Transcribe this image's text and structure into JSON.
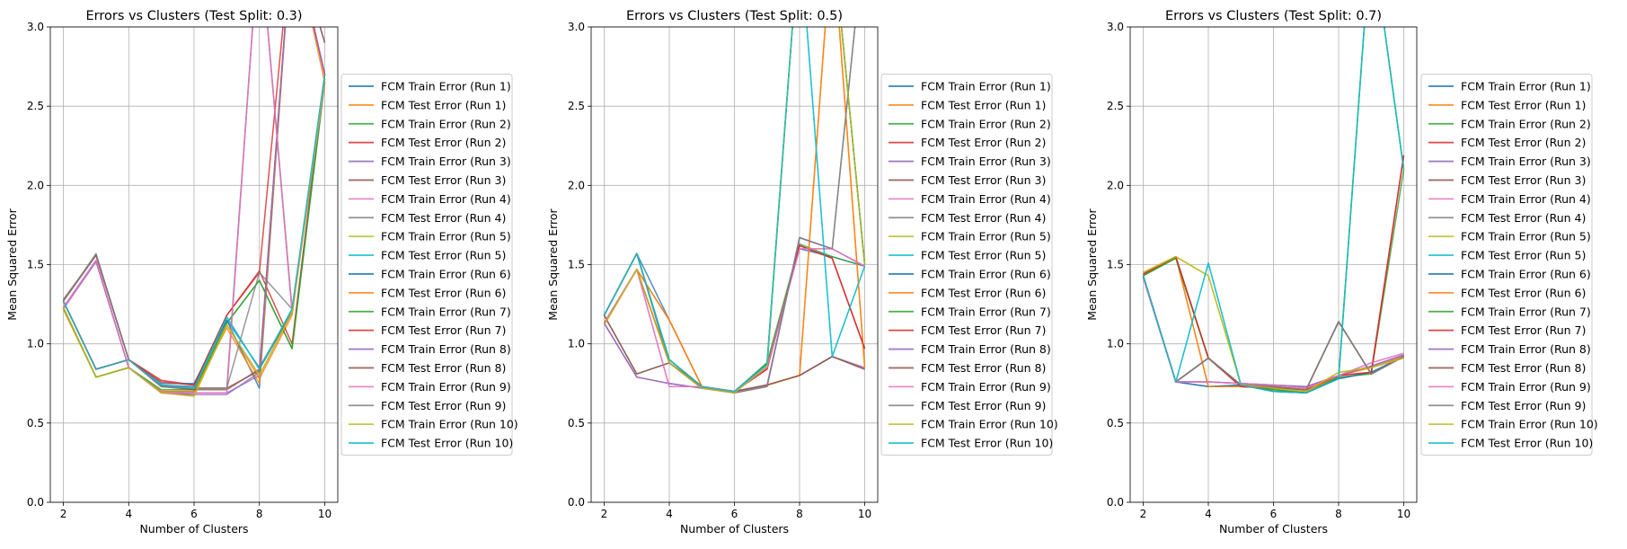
{
  "figure": {
    "series_colors": [
      "#1f77b4",
      "#ff7f0e",
      "#2ca02c",
      "#d62728",
      "#9467bd",
      "#8c564b",
      "#e377c2",
      "#7f7f7f",
      "#bcbd22",
      "#17becf",
      "#1f77b4",
      "#ff7f0e",
      "#2ca02c",
      "#d62728",
      "#9467bd",
      "#8c564b",
      "#e377c2",
      "#7f7f7f",
      "#bcbd22",
      "#17becf"
    ]
  },
  "chart_data": [
    {
      "type": "line",
      "title": "Errors vs Clusters (Test Split: 0.3)",
      "xlabel": "Number of Clusters",
      "ylabel": "Mean Squared Error",
      "xlim": [
        1.6,
        10.4
      ],
      "ylim": [
        0,
        3
      ],
      "xticks": [
        2,
        4,
        6,
        8,
        10
      ],
      "yticks": [
        0.0,
        0.5,
        1.0,
        1.5,
        2.0,
        2.5,
        3.0
      ],
      "grid": true,
      "legend": "outside-right",
      "x": [
        2,
        3,
        4,
        5,
        6,
        7,
        8,
        9,
        10
      ],
      "series": [
        {
          "name": "FCM Train Error (Run 1)",
          "values": [
            1.27,
            0.84,
            0.9,
            0.74,
            0.73,
            1.15,
            0.85,
            1.21,
            2.65
          ]
        },
        {
          "name": "FCM Test Error (Run 1)",
          "values": [
            1.22,
            0.79,
            0.85,
            0.69,
            0.68,
            1.12,
            0.78,
            1.18,
            2.7
          ]
        },
        {
          "name": "FCM Train Error (Run 2)",
          "values": [
            1.23,
            0.79,
            0.85,
            0.7,
            0.7,
            1.13,
            1.4,
            0.97,
            2.65
          ]
        },
        {
          "name": "FCM Test Error (Run 2)",
          "values": [
            1.27,
            0.84,
            0.9,
            0.77,
            0.74,
            1.18,
            1.46,
            1.0,
            2.7
          ]
        },
        {
          "name": "FCM Train Error (Run 3)",
          "values": [
            1.22,
            1.52,
            0.85,
            0.69,
            0.69,
            0.69,
            0.8,
            3.6,
            2.9
          ]
        },
        {
          "name": "FCM Test Error (Run 3)",
          "values": [
            1.28,
            1.56,
            0.9,
            0.73,
            0.72,
            0.72,
            0.83,
            3.6,
            2.9
          ]
        },
        {
          "name": "FCM Train Error (Run 4)",
          "values": [
            1.22,
            1.52,
            0.85,
            0.7,
            0.69,
            0.69,
            3.6,
            1.2,
            2.7
          ]
        },
        {
          "name": "FCM Test Error (Run 4)",
          "values": [
            1.27,
            1.56,
            0.9,
            0.74,
            0.72,
            0.72,
            3.6,
            1.22,
            2.65
          ]
        },
        {
          "name": "FCM Train Error (Run 5)",
          "values": [
            1.22,
            0.79,
            0.85,
            0.69,
            0.67,
            1.12,
            0.8,
            1.2,
            2.7
          ]
        },
        {
          "name": "FCM Test Error (Run 5)",
          "values": [
            1.27,
            0.84,
            0.9,
            0.74,
            0.71,
            1.17,
            0.84,
            1.22,
            2.65
          ]
        },
        {
          "name": "FCM Train Error (Run 6)",
          "values": [
            1.27,
            0.84,
            0.9,
            0.75,
            0.75,
            1.15,
            0.72,
            3.6,
            2.7
          ]
        },
        {
          "name": "FCM Test Error (Run 6)",
          "values": [
            1.22,
            0.79,
            0.85,
            0.7,
            0.7,
            1.1,
            0.75,
            3.6,
            2.65
          ]
        },
        {
          "name": "FCM Train Error (Run 7)",
          "values": [
            1.23,
            0.79,
            0.85,
            0.71,
            0.71,
            1.13,
            1.4,
            0.97,
            2.67
          ]
        },
        {
          "name": "FCM Test Error (Run 7)",
          "values": [
            1.27,
            0.84,
            0.9,
            0.76,
            0.74,
            1.18,
            1.45,
            3.6,
            2.7
          ]
        },
        {
          "name": "FCM Train Error (Run 8)",
          "values": [
            1.23,
            1.52,
            0.85,
            0.69,
            0.68,
            0.68,
            0.82,
            3.6,
            2.7
          ]
        },
        {
          "name": "FCM Test Error (Run 8)",
          "values": [
            1.27,
            1.56,
            0.9,
            0.73,
            0.71,
            0.71,
            0.84,
            1.2,
            2.65
          ]
        },
        {
          "name": "FCM Train Error (Run 9)",
          "values": [
            1.23,
            1.53,
            0.85,
            0.69,
            0.69,
            0.69,
            3.6,
            1.2,
            2.65
          ]
        },
        {
          "name": "FCM Test Error (Run 9)",
          "values": [
            1.27,
            1.57,
            0.9,
            0.73,
            0.72,
            0.72,
            1.45,
            1.22,
            2.7
          ]
        },
        {
          "name": "FCM Train Error (Run 10)",
          "values": [
            1.23,
            0.79,
            0.85,
            0.69,
            0.67,
            1.12,
            0.8,
            1.2,
            2.67
          ]
        },
        {
          "name": "FCM Test Error (Run 10)",
          "values": [
            1.27,
            0.84,
            0.9,
            0.74,
            0.72,
            1.17,
            0.84,
            1.22,
            2.7
          ]
        }
      ]
    },
    {
      "type": "line",
      "title": "Errors vs Clusters (Test Split: 0.5)",
      "xlabel": "Number of Clusters",
      "ylabel": "Mean Squared Error",
      "xlim": [
        1.6,
        10.4
      ],
      "ylim": [
        0,
        3
      ],
      "xticks": [
        2,
        4,
        6,
        8,
        10
      ],
      "yticks": [
        0.0,
        0.5,
        1.0,
        1.5,
        2.0,
        2.5,
        3.0
      ],
      "grid": true,
      "legend": "outside-right",
      "x": [
        2,
        3,
        4,
        5,
        6,
        7,
        8,
        9,
        10
      ],
      "series": [
        {
          "name": "FCM Train Error (Run 1)",
          "values": [
            1.18,
            1.57,
            1.15,
            0.73,
            0.7,
            0.87,
            1.6,
            1.55,
            1.49
          ]
        },
        {
          "name": "FCM Test Error (Run 1)",
          "values": [
            1.12,
            1.47,
            1.15,
            0.73,
            0.7,
            0.74,
            0.8,
            3.6,
            0.85
          ]
        },
        {
          "name": "FCM Train Error (Run 2)",
          "values": [
            1.18,
            1.57,
            0.9,
            0.73,
            0.69,
            0.88,
            1.63,
            1.55,
            1.49
          ]
        },
        {
          "name": "FCM Test Error (Run 2)",
          "values": [
            1.13,
            1.47,
            0.88,
            0.72,
            0.7,
            0.84,
            1.62,
            1.54,
            0.97
          ]
        },
        {
          "name": "FCM Train Error (Run 3)",
          "values": [
            1.13,
            0.79,
            0.75,
            0.72,
            0.7,
            0.74,
            0.8,
            0.92,
            0.85
          ]
        },
        {
          "name": "FCM Test Error (Run 3)",
          "values": [
            1.18,
            0.81,
            0.88,
            0.73,
            0.7,
            0.74,
            0.8,
            0.92,
            0.84
          ]
        },
        {
          "name": "FCM Train Error (Run 4)",
          "values": [
            1.13,
            1.47,
            0.73,
            0.73,
            0.7,
            0.85,
            1.6,
            1.6,
            1.49
          ]
        },
        {
          "name": "FCM Test Error (Run 4)",
          "values": [
            1.18,
            1.57,
            0.88,
            0.72,
            0.69,
            0.73,
            1.67,
            1.6,
            3.6
          ]
        },
        {
          "name": "FCM Train Error (Run 5)",
          "values": [
            1.12,
            1.47,
            0.88,
            0.72,
            0.69,
            0.86,
            3.6,
            3.6,
            1.5
          ]
        },
        {
          "name": "FCM Test Error (Run 5)",
          "values": [
            1.18,
            1.57,
            0.9,
            0.73,
            0.7,
            0.87,
            3.6,
            0.92,
            1.49
          ]
        },
        {
          "name": "FCM Train Error (Run 6)",
          "values": [
            1.18,
            1.57,
            0.9,
            0.73,
            0.7,
            0.88,
            3.6,
            3.6,
            1.5
          ]
        },
        {
          "name": "FCM Test Error (Run 6)",
          "values": [
            1.12,
            1.47,
            1.15,
            0.73,
            0.7,
            0.74,
            0.8,
            3.6,
            0.85
          ]
        },
        {
          "name": "FCM Train Error (Run 7)",
          "values": [
            1.18,
            1.57,
            0.9,
            0.73,
            0.69,
            0.88,
            3.6,
            3.6,
            1.5
          ]
        },
        {
          "name": "FCM Test Error (Run 7)",
          "values": [
            1.13,
            1.47,
            0.88,
            0.72,
            0.7,
            0.84,
            1.62,
            1.54,
            0.97
          ]
        },
        {
          "name": "FCM Train Error (Run 8)",
          "values": [
            1.13,
            0.79,
            0.75,
            0.72,
            0.7,
            0.74,
            1.67,
            1.6,
            1.49
          ]
        },
        {
          "name": "FCM Test Error (Run 8)",
          "values": [
            1.18,
            0.81,
            0.88,
            0.73,
            0.7,
            0.74,
            0.8,
            0.92,
            0.84
          ]
        },
        {
          "name": "FCM Train Error (Run 9)",
          "values": [
            1.13,
            1.47,
            0.73,
            0.73,
            0.7,
            0.85,
            1.6,
            1.6,
            1.49
          ]
        },
        {
          "name": "FCM Test Error (Run 9)",
          "values": [
            1.18,
            1.57,
            0.88,
            0.72,
            0.69,
            0.73,
            1.67,
            1.6,
            3.6
          ]
        },
        {
          "name": "FCM Train Error (Run 10)",
          "values": [
            1.12,
            1.47,
            0.88,
            0.72,
            0.69,
            0.86,
            3.6,
            3.6,
            1.5
          ]
        },
        {
          "name": "FCM Test Error (Run 10)",
          "values": [
            1.18,
            1.57,
            0.9,
            0.73,
            0.7,
            0.87,
            3.6,
            0.92,
            1.49
          ]
        }
      ]
    },
    {
      "type": "line",
      "title": "Errors vs Clusters (Test Split: 0.7)",
      "xlabel": "Number of Clusters",
      "ylabel": "Mean Squared Error",
      "xlim": [
        1.6,
        10.4
      ],
      "ylim": [
        0,
        3
      ],
      "xticks": [
        2,
        4,
        6,
        8,
        10
      ],
      "yticks": [
        0.0,
        0.5,
        1.0,
        1.5,
        2.0,
        2.5,
        3.0
      ],
      "grid": true,
      "legend": "outside-right",
      "x": [
        2,
        3,
        4,
        5,
        6,
        7,
        8,
        9,
        10
      ],
      "series": [
        {
          "name": "FCM Train Error (Run 1)",
          "values": [
            1.43,
            0.76,
            0.73,
            0.74,
            0.7,
            0.69,
            0.78,
            0.82,
            0.92
          ]
        },
        {
          "name": "FCM Test Error (Run 1)",
          "values": [
            1.45,
            1.55,
            0.73,
            0.73,
            0.72,
            0.7,
            0.8,
            0.85,
            0.92
          ]
        },
        {
          "name": "FCM Train Error (Run 2)",
          "values": [
            1.43,
            1.54,
            0.91,
            0.74,
            0.71,
            0.69,
            0.79,
            0.81,
            2.1
          ]
        },
        {
          "name": "FCM Test Error (Run 2)",
          "values": [
            1.44,
            1.55,
            0.91,
            0.73,
            0.72,
            0.71,
            0.8,
            0.82,
            2.19
          ]
        },
        {
          "name": "FCM Train Error (Run 3)",
          "values": [
            1.42,
            0.76,
            0.76,
            0.75,
            0.74,
            0.73,
            0.8,
            0.86,
            0.93
          ]
        },
        {
          "name": "FCM Test Error (Run 3)",
          "values": [
            1.43,
            0.76,
            0.91,
            0.74,
            0.73,
            0.71,
            1.14,
            0.81,
            0.92
          ]
        },
        {
          "name": "FCM Train Error (Run 4)",
          "values": [
            1.42,
            0.76,
            0.76,
            0.75,
            0.74,
            0.72,
            0.8,
            0.88,
            0.94
          ]
        },
        {
          "name": "FCM Test Error (Run 4)",
          "values": [
            1.43,
            0.76,
            0.91,
            0.74,
            0.73,
            0.71,
            1.14,
            0.81,
            0.92
          ]
        },
        {
          "name": "FCM Train Error (Run 5)",
          "values": [
            1.45,
            1.55,
            1.43,
            0.74,
            0.72,
            0.7,
            0.82,
            0.85,
            0.91
          ]
        },
        {
          "name": "FCM Test Error (Run 5)",
          "values": [
            1.43,
            0.76,
            1.51,
            0.74,
            0.7,
            0.69,
            0.78,
            3.6,
            2.1
          ]
        },
        {
          "name": "FCM Train Error (Run 6)",
          "values": [
            1.43,
            0.76,
            0.73,
            0.74,
            0.7,
            0.69,
            0.78,
            0.82,
            0.92
          ]
        },
        {
          "name": "FCM Test Error (Run 6)",
          "values": [
            1.45,
            1.55,
            0.73,
            0.73,
            0.72,
            0.7,
            0.8,
            0.85,
            0.92
          ]
        },
        {
          "name": "FCM Train Error (Run 7)",
          "values": [
            1.43,
            1.54,
            0.91,
            0.74,
            0.71,
            0.69,
            0.79,
            3.6,
            2.1
          ]
        },
        {
          "name": "FCM Test Error (Run 7)",
          "values": [
            1.44,
            1.55,
            0.91,
            0.73,
            0.72,
            0.71,
            0.8,
            0.82,
            2.19
          ]
        },
        {
          "name": "FCM Train Error (Run 8)",
          "values": [
            1.42,
            0.76,
            0.76,
            0.75,
            0.74,
            0.73,
            0.8,
            0.86,
            0.93
          ]
        },
        {
          "name": "FCM Test Error (Run 8)",
          "values": [
            1.43,
            0.76,
            0.91,
            0.74,
            0.73,
            0.71,
            1.14,
            0.81,
            0.92
          ]
        },
        {
          "name": "FCM Train Error (Run 9)",
          "values": [
            1.42,
            0.76,
            0.76,
            0.75,
            0.74,
            0.72,
            0.8,
            0.88,
            0.94
          ]
        },
        {
          "name": "FCM Test Error (Run 9)",
          "values": [
            1.43,
            0.76,
            0.91,
            0.74,
            0.73,
            0.71,
            1.14,
            0.81,
            0.92
          ]
        },
        {
          "name": "FCM Train Error (Run 10)",
          "values": [
            1.45,
            1.55,
            1.43,
            0.74,
            0.72,
            0.7,
            0.82,
            0.85,
            0.91
          ]
        },
        {
          "name": "FCM Test Error (Run 10)",
          "values": [
            1.43,
            0.76,
            1.51,
            0.74,
            0.7,
            0.69,
            0.78,
            3.6,
            2.1
          ]
        }
      ]
    }
  ]
}
